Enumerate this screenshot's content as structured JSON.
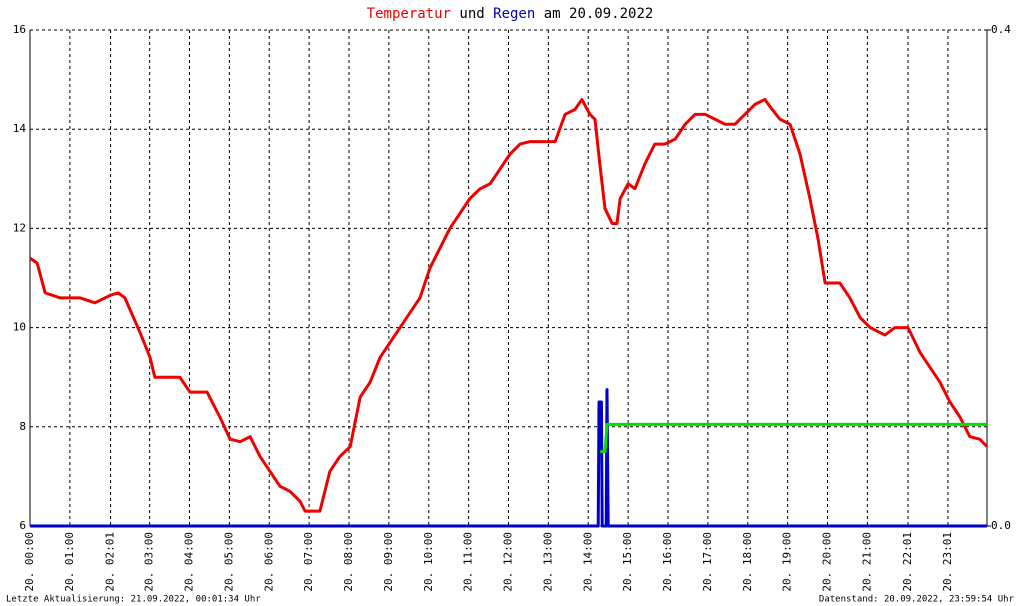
{
  "chart_data": {
    "type": "line",
    "title_parts": [
      {
        "text": "Temperatur",
        "color": "#ee0000"
      },
      {
        "text": "und",
        "color": "#000000"
      },
      {
        "text": "Regen",
        "color": "#0000aa"
      },
      {
        "text": "am 20.09.2022",
        "color": "#000000"
      }
    ],
    "footer_left": "Letzte Aktualisierung: 21.09.2022, 00:01:34 Uhr",
    "footer_right": "Datenstand: 20.09.2022, 23:59:54 Uhr",
    "xlim": [
      0,
      24
    ],
    "xticks": [
      {
        "value": 0,
        "label": "20. 00:00"
      },
      {
        "value": 1,
        "label": "20. 01:00"
      },
      {
        "value": 2.02,
        "label": "20. 02:01"
      },
      {
        "value": 3,
        "label": "20. 03:00"
      },
      {
        "value": 4,
        "label": "20. 04:00"
      },
      {
        "value": 5,
        "label": "20. 05:00"
      },
      {
        "value": 6,
        "label": "20. 06:00"
      },
      {
        "value": 7,
        "label": "20. 07:00"
      },
      {
        "value": 8,
        "label": "20. 08:00"
      },
      {
        "value": 9,
        "label": "20. 09:00"
      },
      {
        "value": 10,
        "label": "20. 10:00"
      },
      {
        "value": 11,
        "label": "20. 11:00"
      },
      {
        "value": 12,
        "label": "20. 12:00"
      },
      {
        "value": 13,
        "label": "20. 13:00"
      },
      {
        "value": 14,
        "label": "20. 14:00"
      },
      {
        "value": 15,
        "label": "20. 15:00"
      },
      {
        "value": 16,
        "label": "20. 16:00"
      },
      {
        "value": 17,
        "label": "20. 17:00"
      },
      {
        "value": 18,
        "label": "20. 18:00"
      },
      {
        "value": 19,
        "label": "20. 19:00"
      },
      {
        "value": 20,
        "label": "20. 20:00"
      },
      {
        "value": 21,
        "label": "20. 21:00"
      },
      {
        "value": 22.02,
        "label": "20. 22:01"
      },
      {
        "value": 23.02,
        "label": "20. 23:01"
      }
    ],
    "ylim": [
      6,
      16
    ],
    "yticks": [
      6,
      8,
      10,
      12,
      14,
      16
    ],
    "y2lim": [
      0,
      0.4
    ],
    "y2ticks": [
      {
        "value": 0,
        "label": "0.0"
      },
      {
        "value": 0.4,
        "label": "0.4"
      }
    ],
    "grid": true,
    "series": [
      {
        "color": "#ee0000",
        "x": [
          0,
          0.18,
          0.38,
          0.75,
          1.25,
          1.63,
          2.01,
          2.21,
          2.38,
          2.76,
          3.01,
          3.13,
          3.76,
          4.01,
          4.44,
          4.76,
          5.02,
          5.27,
          5.52,
          5.77,
          6.02,
          6.27,
          6.52,
          6.77,
          6.9,
          7.27,
          7.52,
          7.77,
          8.03,
          8.28,
          8.53,
          8.78,
          9.03,
          9.28,
          9.53,
          9.78,
          10.03,
          10.28,
          10.53,
          10.78,
          11.03,
          11.29,
          11.54,
          11.79,
          12.04,
          12.29,
          12.54,
          13.17,
          13.42,
          13.67,
          13.84,
          14.04,
          14.17,
          14.29,
          14.42,
          14.6,
          14.72,
          14.8,
          15,
          15.17,
          15.42,
          15.67,
          15.92,
          16.18,
          16.43,
          16.68,
          16.93,
          17.18,
          17.43,
          17.68,
          17.93,
          18.18,
          18.43,
          18.61,
          18.81,
          19.06,
          19.31,
          19.56,
          19.76,
          19.94,
          20.31,
          20.56,
          20.82,
          21.07,
          21.44,
          21.69,
          22.02,
          22.32,
          22.57,
          22.82,
          23.07,
          23.32,
          23.57,
          23.82,
          24
        ],
        "values": [
          11.4,
          11.3,
          10.7,
          10.6,
          10.6,
          10.5,
          10.65,
          10.7,
          10.6,
          9.9,
          9.4,
          9.0,
          9.0,
          8.7,
          8.7,
          8.2,
          7.75,
          7.7,
          7.8,
          7.4,
          7.1,
          6.8,
          6.7,
          6.5,
          6.3,
          6.3,
          7.1,
          7.4,
          7.6,
          8.6,
          8.9,
          9.4,
          9.7,
          10.0,
          10.3,
          10.6,
          11.2,
          11.6,
          12.0,
          12.3,
          12.6,
          12.8,
          12.9,
          13.2,
          13.5,
          13.7,
          13.75,
          13.75,
          14.3,
          14.4,
          14.6,
          14.3,
          14.2,
          13.3,
          12.4,
          12.1,
          12.1,
          12.6,
          12.9,
          12.8,
          13.3,
          13.7,
          13.7,
          13.8,
          14.1,
          14.3,
          14.3,
          14.2,
          14.1,
          14.1,
          14.3,
          14.5,
          14.6,
          14.4,
          14.2,
          14.1,
          13.5,
          12.6,
          11.8,
          10.9,
          10.9,
          10.6,
          10.2,
          10.0,
          9.85,
          10.0,
          10.0,
          9.5,
          9.2,
          8.9,
          8.5,
          8.2,
          7.8,
          7.75,
          7.6
        ]
      },
      {
        "color": "#0000cc",
        "axis": "y2",
        "x": [
          0,
          14.25,
          14.27,
          14.33,
          14.35,
          14.45,
          14.47,
          14.5,
          24
        ],
        "values": [
          0,
          0,
          0.1,
          0.1,
          0,
          0,
          0.11,
          0,
          0
        ]
      },
      {
        "color": "#00e000",
        "axis": "y2",
        "x": [
          14.3,
          14.42,
          14.47,
          24
        ],
        "values": [
          0.06,
          0.06,
          0.082,
          0.082
        ]
      }
    ]
  }
}
